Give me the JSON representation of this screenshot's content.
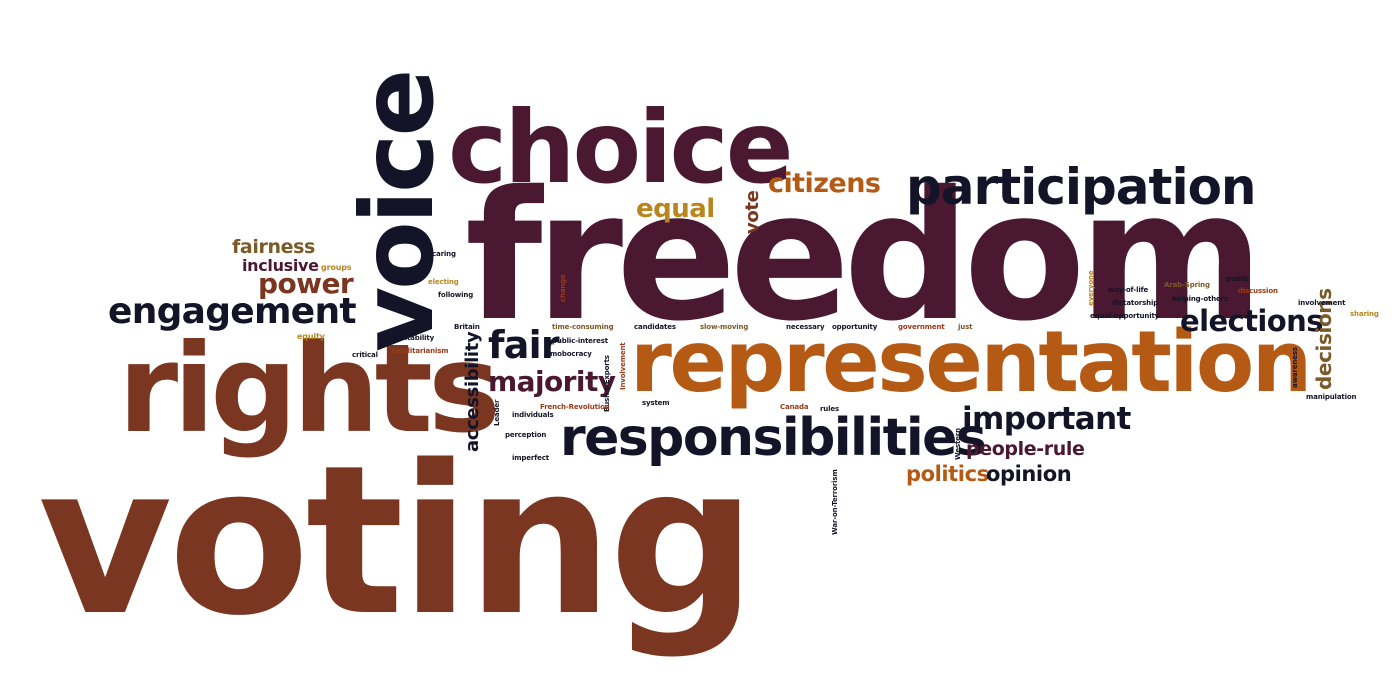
{
  "colors": {
    "brown": "#7a3620",
    "plum": "#4a1830",
    "navy": "#141428",
    "orange": "#b55a14",
    "olive": "#7a5a28",
    "gold": "#b8861f",
    "rust": "#9a3a18"
  },
  "words": [
    {
      "text": "voting",
      "color": "brown"
    },
    {
      "text": "freedom",
      "color": "plum"
    },
    {
      "text": "representation",
      "color": "orange"
    },
    {
      "text": "rights",
      "color": "brown"
    },
    {
      "text": "voice",
      "color": "navy"
    },
    {
      "text": "choice",
      "color": "plum"
    },
    {
      "text": "responsibilities",
      "color": "navy"
    },
    {
      "text": "participation",
      "color": "navy"
    },
    {
      "text": "engagement",
      "color": "navy"
    },
    {
      "text": "power",
      "color": "brown"
    },
    {
      "text": "inclusive",
      "color": "plum"
    },
    {
      "text": "fairness",
      "color": "olive"
    },
    {
      "text": "equal",
      "color": "gold"
    },
    {
      "text": "citizens",
      "color": "orange"
    },
    {
      "text": "vote",
      "color": "brown"
    },
    {
      "text": "fair",
      "color": "navy"
    },
    {
      "text": "majority",
      "color": "plum"
    },
    {
      "text": "elections",
      "color": "navy"
    },
    {
      "text": "important",
      "color": "navy"
    },
    {
      "text": "people-rule",
      "color": "plum"
    },
    {
      "text": "politics",
      "color": "orange"
    },
    {
      "text": "opinion",
      "color": "navy"
    },
    {
      "text": "accessibility",
      "color": "navy"
    },
    {
      "text": "decisions",
      "color": "olive"
    },
    {
      "text": "groups",
      "color": "gold"
    },
    {
      "text": "caring",
      "color": "navy"
    },
    {
      "text": "electing",
      "color": "gold"
    },
    {
      "text": "following",
      "color": "navy"
    },
    {
      "text": "change",
      "color": "rust"
    },
    {
      "text": "equity",
      "color": "gold"
    },
    {
      "text": "accountability",
      "color": "navy"
    },
    {
      "text": "Britain",
      "color": "navy"
    },
    {
      "text": "critical",
      "color": "navy"
    },
    {
      "text": "totalitarianism",
      "color": "rust"
    },
    {
      "text": "time-consuming",
      "color": "olive"
    },
    {
      "text": "public-interest",
      "color": "navy"
    },
    {
      "text": "mobocracy",
      "color": "navy"
    },
    {
      "text": "candidates",
      "color": "navy"
    },
    {
      "text": "slow-moving",
      "color": "olive"
    },
    {
      "text": "necessary",
      "color": "navy"
    },
    {
      "text": "opportunity",
      "color": "navy"
    },
    {
      "text": "government",
      "color": "rust"
    },
    {
      "text": "just",
      "color": "olive"
    },
    {
      "text": "Involvement",
      "color": "rust"
    },
    {
      "text": "Bush's-Exports",
      "color": "navy"
    },
    {
      "text": "Leader",
      "color": "navy"
    },
    {
      "text": "individuals",
      "color": "navy"
    },
    {
      "text": "French-Revolution",
      "color": "rust"
    },
    {
      "text": "system",
      "color": "navy"
    },
    {
      "text": "perception",
      "color": "navy"
    },
    {
      "text": "imperfect",
      "color": "navy"
    },
    {
      "text": "Canada",
      "color": "rust"
    },
    {
      "text": "rules",
      "color": "navy"
    },
    {
      "text": "Western",
      "color": "navy"
    },
    {
      "text": "War-on-Terrorism",
      "color": "navy"
    },
    {
      "text": "everyone",
      "color": "gold"
    },
    {
      "text": "way-of-life",
      "color": "navy"
    },
    {
      "text": "Arab-Spring",
      "color": "olive"
    },
    {
      "text": "public",
      "color": "navy"
    },
    {
      "text": "dictatorship",
      "color": "navy"
    },
    {
      "text": "helping-others",
      "color": "navy"
    },
    {
      "text": "discussion",
      "color": "rust"
    },
    {
      "text": "equal-opportunity",
      "color": "navy"
    },
    {
      "text": "involvement",
      "color": "navy"
    },
    {
      "text": "sharing",
      "color": "gold"
    },
    {
      "text": "awareness",
      "color": "navy"
    },
    {
      "text": "manipulation",
      "color": "navy"
    }
  ]
}
